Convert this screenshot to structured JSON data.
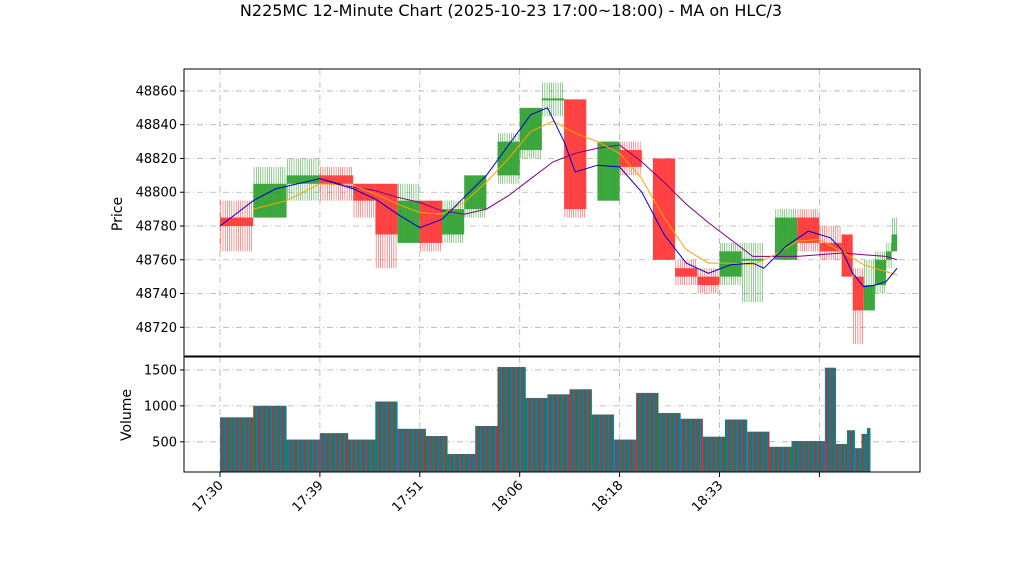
{
  "chart_data": {
    "type": "candlestick",
    "title": "N225MC 12-Minute Chart (2025-10-23 17:00~18:00) - MA on HLC/3",
    "price_axis": {
      "label": "Price",
      "ylim": [
        48703,
        48873
      ],
      "ticks": [
        48720,
        48740,
        48760,
        48780,
        48800,
        48820,
        48840,
        48860
      ]
    },
    "volume_axis": {
      "label": "Volume",
      "ylim": [
        80,
        1680
      ],
      "ticks": [
        500,
        1000,
        1500
      ]
    },
    "x_ticks": [
      {
        "index": 0,
        "label": "17:30"
      },
      {
        "index": 9,
        "label": "17:39"
      },
      {
        "index": 18,
        "label": "17:51"
      },
      {
        "index": 27,
        "label": "18:06"
      },
      {
        "index": 36,
        "label": "18:18"
      },
      {
        "index": 45,
        "label": "18:33"
      },
      {
        "index": 54,
        "label": ""
      }
    ],
    "grid": true,
    "colors": {
      "up": "#2ca02c",
      "down": "#ff3333",
      "ma_fast": "#0000cc",
      "ma_mid": "#ffa500",
      "ma_slow": "#800080",
      "vol_a": "#1f77b4",
      "vol_b": "#d62728",
      "vol_c": "#008f3a"
    },
    "candles": [
      {
        "i": 0,
        "w": 3,
        "o": 48785,
        "c": 48780,
        "h": 48795,
        "l": 48765
      },
      {
        "i": 3,
        "w": 3,
        "o": 48785,
        "c": 48805,
        "h": 48815,
        "l": 48785
      },
      {
        "i": 6,
        "w": 3,
        "o": 48805,
        "c": 48810,
        "h": 48820,
        "l": 48795
      },
      {
        "i": 9,
        "w": 3,
        "o": 48810,
        "c": 48805,
        "h": 48815,
        "l": 48795
      },
      {
        "i": 12,
        "w": 2,
        "o": 48805,
        "c": 48795,
        "h": 48805,
        "l": 48785
      },
      {
        "i": 14,
        "w": 2,
        "o": 48805,
        "c": 48775,
        "h": 48805,
        "l": 48755
      },
      {
        "i": 16,
        "w": 2,
        "o": 48770,
        "c": 48795,
        "h": 48805,
        "l": 48770
      },
      {
        "i": 18,
        "w": 2,
        "o": 48795,
        "c": 48770,
        "h": 48795,
        "l": 48765
      },
      {
        "i": 20,
        "w": 2,
        "o": 48775,
        "c": 48790,
        "h": 48795,
        "l": 48770
      },
      {
        "i": 22,
        "w": 2,
        "o": 48790,
        "c": 48810,
        "h": 48810,
        "l": 48785
      },
      {
        "i": 25,
        "w": 2,
        "o": 48810,
        "c": 48830,
        "h": 48835,
        "l": 48805
      },
      {
        "i": 27,
        "w": 2,
        "o": 48825,
        "c": 48850,
        "h": 48850,
        "l": 48820
      },
      {
        "i": 29,
        "w": 2,
        "o": 48855,
        "c": 48855,
        "h": 48865,
        "l": 48845
      },
      {
        "i": 31,
        "w": 2,
        "o": 48855,
        "c": 48790,
        "h": 48855,
        "l": 48785
      },
      {
        "i": 34,
        "w": 2,
        "o": 48795,
        "c": 48830,
        "h": 48830,
        "l": 48795
      },
      {
        "i": 36,
        "w": 2,
        "o": 48825,
        "c": 48815,
        "h": 48830,
        "l": 48810
      },
      {
        "i": 39,
        "w": 2,
        "o": 48820,
        "c": 48760,
        "h": 48820,
        "l": 48760
      },
      {
        "i": 41,
        "w": 2,
        "o": 48755,
        "c": 48750,
        "h": 48760,
        "l": 48745
      },
      {
        "i": 43,
        "w": 2,
        "o": 48750,
        "c": 48745,
        "h": 48755,
        "l": 48740
      },
      {
        "i": 45,
        "w": 2,
        "o": 48750,
        "c": 48765,
        "h": 48770,
        "l": 48745
      },
      {
        "i": 47,
        "w": 2,
        "o": 48760,
        "c": 48760,
        "h": 48770,
        "l": 48735
      },
      {
        "i": 50,
        "w": 2,
        "o": 48760,
        "c": 48785,
        "h": 48790,
        "l": 48760
      },
      {
        "i": 52,
        "w": 2,
        "o": 48785,
        "c": 48770,
        "h": 48790,
        "l": 48765
      },
      {
        "i": 54,
        "w": 2,
        "o": 48770,
        "c": 48765,
        "h": 48780,
        "l": 48760
      },
      {
        "i": 56,
        "w": 1,
        "o": 48775,
        "c": 48750,
        "h": 48775,
        "l": 48750
      },
      {
        "i": 57,
        "w": 1,
        "o": 48750,
        "c": 48730,
        "h": 48755,
        "l": 48710
      },
      {
        "i": 58,
        "w": 1,
        "o": 48730,
        "c": 48745,
        "h": 48760,
        "l": 48730
      },
      {
        "i": 59,
        "w": 1,
        "o": 48745,
        "c": 48760,
        "h": 48765,
        "l": 48740
      },
      {
        "i": 60,
        "w": 0.5,
        "o": 48760,
        "c": 48765,
        "h": 48770,
        "l": 48755
      },
      {
        "i": 60.5,
        "w": 0.5,
        "o": 48765,
        "c": 48775,
        "h": 48785,
        "l": 48765
      }
    ],
    "ma_fast": [
      [
        0,
        48780
      ],
      [
        3,
        48795
      ],
      [
        5,
        48802
      ],
      [
        9,
        48808
      ],
      [
        12,
        48802
      ],
      [
        14,
        48796
      ],
      [
        16,
        48787
      ],
      [
        18,
        48779
      ],
      [
        20,
        48784
      ],
      [
        22,
        48797
      ],
      [
        24,
        48810
      ],
      [
        26,
        48828
      ],
      [
        28,
        48846
      ],
      [
        29.5,
        48850
      ],
      [
        31,
        48830
      ],
      [
        32,
        48812
      ],
      [
        34,
        48816
      ],
      [
        36,
        48815
      ],
      [
        38,
        48800
      ],
      [
        40,
        48775
      ],
      [
        42,
        48758
      ],
      [
        44,
        48752
      ],
      [
        46,
        48757
      ],
      [
        48,
        48758
      ],
      [
        49,
        48755
      ],
      [
        51,
        48768
      ],
      [
        53,
        48777
      ],
      [
        55,
        48773
      ],
      [
        56,
        48766
      ],
      [
        57,
        48752
      ],
      [
        58,
        48744
      ],
      [
        59,
        48745
      ],
      [
        60,
        48747
      ],
      [
        61,
        48755
      ]
    ],
    "ma_mid": [
      [
        3,
        48790
      ],
      [
        6,
        48795
      ],
      [
        9,
        48805
      ],
      [
        12,
        48804
      ],
      [
        14,
        48799
      ],
      [
        16,
        48793
      ],
      [
        18,
        48788
      ],
      [
        20,
        48787
      ],
      [
        22,
        48794
      ],
      [
        24,
        48806
      ],
      [
        26,
        48820
      ],
      [
        28,
        48836
      ],
      [
        30,
        48842
      ],
      [
        32,
        48835
      ],
      [
        34,
        48830
      ],
      [
        36,
        48823
      ],
      [
        38,
        48808
      ],
      [
        40,
        48785
      ],
      [
        42,
        48766
      ],
      [
        44,
        48758
      ],
      [
        46,
        48758
      ],
      [
        48,
        48757
      ],
      [
        50,
        48763
      ],
      [
        52,
        48771
      ],
      [
        54,
        48772
      ],
      [
        56,
        48765
      ],
      [
        58,
        48757
      ],
      [
        60,
        48753
      ],
      [
        61,
        48751
      ]
    ],
    "ma_slow": [
      [
        9,
        48808
      ],
      [
        12,
        48803
      ],
      [
        14,
        48801
      ],
      [
        16,
        48797
      ],
      [
        18,
        48794
      ],
      [
        20,
        48789
      ],
      [
        22,
        48787
      ],
      [
        24,
        48790
      ],
      [
        26,
        48798
      ],
      [
        28,
        48808
      ],
      [
        30,
        48818
      ],
      [
        32,
        48823
      ],
      [
        34,
        48826
      ],
      [
        36,
        48828
      ],
      [
        38,
        48818
      ],
      [
        40,
        48806
      ],
      [
        42,
        48793
      ],
      [
        44,
        48782
      ],
      [
        46,
        48772
      ],
      [
        48,
        48762
      ],
      [
        50,
        48762
      ],
      [
        52,
        48762
      ],
      [
        54,
        48763
      ],
      [
        56,
        48764
      ],
      [
        58,
        48763
      ],
      [
        60,
        48762
      ],
      [
        61,
        48760
      ]
    ],
    "volumes": [
      {
        "i": 0,
        "w": 3,
        "v": 840
      },
      {
        "i": 3,
        "w": 3,
        "v": 1000
      },
      {
        "i": 6,
        "w": 3,
        "v": 530
      },
      {
        "i": 9,
        "w": 2.5,
        "v": 620
      },
      {
        "i": 11.5,
        "w": 2.5,
        "v": 530
      },
      {
        "i": 14,
        "w": 2,
        "v": 1060
      },
      {
        "i": 16,
        "w": 2.5,
        "v": 680
      },
      {
        "i": 18.5,
        "w": 2,
        "v": 580
      },
      {
        "i": 20.5,
        "w": 2.5,
        "v": 330
      },
      {
        "i": 23,
        "w": 2,
        "v": 720
      },
      {
        "i": 25,
        "w": 2.5,
        "v": 1540
      },
      {
        "i": 27.5,
        "w": 2,
        "v": 1110
      },
      {
        "i": 29.5,
        "w": 2,
        "v": 1160
      },
      {
        "i": 31.5,
        "w": 2,
        "v": 1230
      },
      {
        "i": 33.5,
        "w": 2,
        "v": 880
      },
      {
        "i": 35.5,
        "w": 2,
        "v": 530
      },
      {
        "i": 37.5,
        "w": 2,
        "v": 1180
      },
      {
        "i": 39.5,
        "w": 2,
        "v": 900
      },
      {
        "i": 41.5,
        "w": 2,
        "v": 820
      },
      {
        "i": 43.5,
        "w": 2,
        "v": 570
      },
      {
        "i": 45.5,
        "w": 2,
        "v": 810
      },
      {
        "i": 47.5,
        "w": 2,
        "v": 640
      },
      {
        "i": 49.5,
        "w": 2,
        "v": 430
      },
      {
        "i": 51.5,
        "w": 3,
        "v": 510
      },
      {
        "i": 54.5,
        "w": 1,
        "v": 1530
      },
      {
        "i": 55.5,
        "w": 1,
        "v": 470
      },
      {
        "i": 56.5,
        "w": 0.7,
        "v": 660
      },
      {
        "i": 57.2,
        "w": 0.6,
        "v": 410
      },
      {
        "i": 57.8,
        "w": 0.5,
        "v": 610
      },
      {
        "i": 58.3,
        "w": 0.3,
        "v": 690
      }
    ]
  }
}
